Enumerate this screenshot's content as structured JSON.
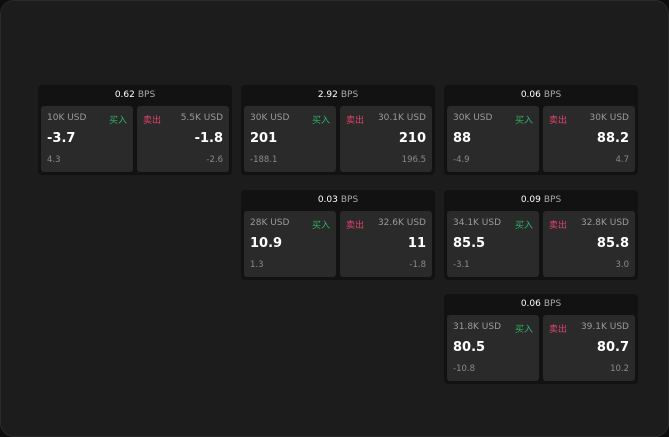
{
  "labels": {
    "buy": "买入",
    "sell": "卖出",
    "unit": "BPS"
  },
  "colors": {
    "buy": "#2fb36b",
    "sell": "#e0436b"
  },
  "cards": [
    {
      "spread": "0.62",
      "bid": {
        "size": "10K USD",
        "price": "-3.7",
        "change": "4.3"
      },
      "ask": {
        "size": "5.5K USD",
        "price": "-1.8",
        "change": "-2.6"
      }
    },
    {
      "spread": "2.92",
      "bid": {
        "size": "30K USD",
        "price": "201",
        "change": "-188.1"
      },
      "ask": {
        "size": "30.1K USD",
        "price": "210",
        "change": "196.5"
      }
    },
    {
      "spread": "0.06",
      "bid": {
        "size": "30K USD",
        "price": "88",
        "change": "-4.9"
      },
      "ask": {
        "size": "30K USD",
        "price": "88.2",
        "change": "4.7"
      }
    },
    {
      "spread": "0.03",
      "bid": {
        "size": "28K USD",
        "price": "10.9",
        "change": "1.3"
      },
      "ask": {
        "size": "32.6K USD",
        "price": "11",
        "change": "-1.8"
      }
    },
    {
      "spread": "0.09",
      "bid": {
        "size": "34.1K USD",
        "price": "85.5",
        "change": "-3.1"
      },
      "ask": {
        "size": "32.8K USD",
        "price": "85.8",
        "change": "3.0"
      }
    },
    {
      "spread": "0.06",
      "bid": {
        "size": "31.8K USD",
        "price": "80.5",
        "change": "-10.8"
      },
      "ask": {
        "size": "39.1K USD",
        "price": "80.7",
        "change": "10.2"
      }
    }
  ]
}
